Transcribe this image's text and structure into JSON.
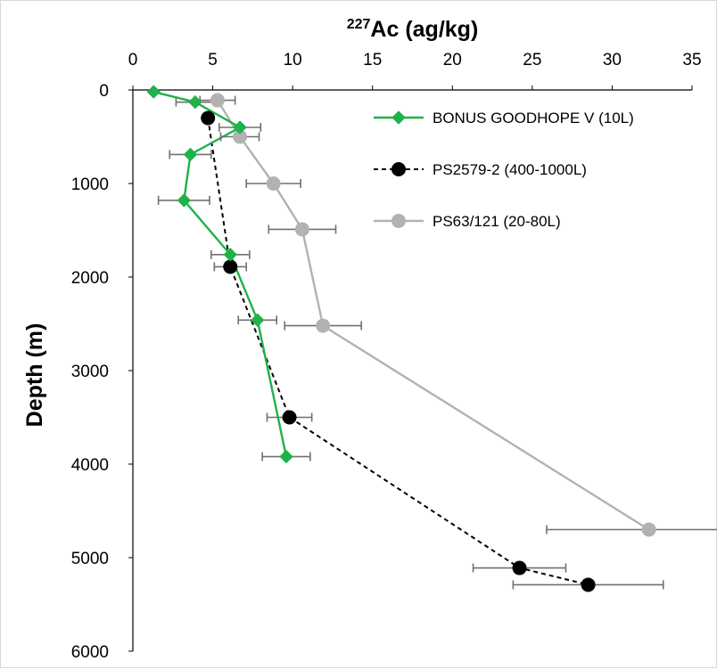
{
  "chart_data": {
    "type": "scatter",
    "title": "",
    "xlabel_sup": "227",
    "xlabel_main": "Ac (ag/kg)",
    "ylabel": "Depth (m)",
    "x_axis_position": "top",
    "y_axis_reversed": true,
    "xlim": [
      0,
      35
    ],
    "ylim": [
      0,
      6000
    ],
    "xticks": [
      0,
      5,
      10,
      15,
      20,
      25,
      30,
      35
    ],
    "yticks": [
      0,
      1000,
      2000,
      3000,
      4000,
      5000,
      6000
    ],
    "grid": false,
    "legend_position": "top-right",
    "series": [
      {
        "name": "BONUS GOODHOPE V (10L)",
        "color": "#1fb24a",
        "marker": "diamond",
        "line": "solid",
        "points": [
          {
            "x": 1.3,
            "y": 20,
            "err": null
          },
          {
            "x": 3.9,
            "y": 130,
            "err": 1.2
          },
          {
            "x": 6.7,
            "y": 400,
            "err": 1.3
          },
          {
            "x": 3.6,
            "y": 690,
            "err": 1.3
          },
          {
            "x": 3.2,
            "y": 1180,
            "err": 1.6
          },
          {
            "x": 6.1,
            "y": 1760,
            "err": 1.2
          },
          {
            "x": 7.8,
            "y": 2460,
            "err": 1.2
          },
          {
            "x": 9.6,
            "y": 3920,
            "err": 1.5
          }
        ]
      },
      {
        "name": "PS2579-2 (400-1000L)",
        "color": "#000000",
        "marker": "circle",
        "line": "dashed",
        "points": [
          {
            "x": 4.7,
            "y": 300,
            "err": null
          },
          {
            "x": 6.1,
            "y": 1890,
            "err": 1.0
          },
          {
            "x": 9.8,
            "y": 3500,
            "err": 1.4
          },
          {
            "x": 24.2,
            "y": 5110,
            "err": 2.9
          },
          {
            "x": 28.5,
            "y": 5290,
            "err": 4.7
          }
        ]
      },
      {
        "name": "PS63/121 (20-80L)",
        "color": "#b2b2b2",
        "marker": "circle",
        "line": "solid",
        "points": [
          {
            "x": 5.3,
            "y": 110,
            "err": 1.1
          },
          {
            "x": 6.7,
            "y": 500,
            "err": 1.2
          },
          {
            "x": 8.8,
            "y": 1000,
            "err": 1.7
          },
          {
            "x": 10.6,
            "y": 1490,
            "err": 2.1
          },
          {
            "x": 11.9,
            "y": 2520,
            "err": 2.4
          },
          {
            "x": 32.3,
            "y": 4700,
            "err": 6.4
          }
        ]
      }
    ]
  }
}
